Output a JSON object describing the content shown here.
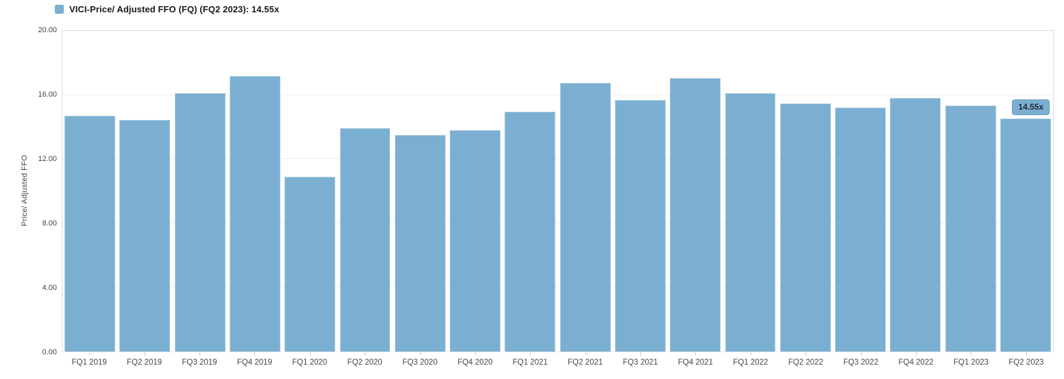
{
  "legend": {
    "label": "VICI-Price/ Adjusted FFO (FQ) (FQ2 2023): 14.55x",
    "swatch_color": "#7bafd1"
  },
  "chart_data": {
    "type": "bar",
    "title": "",
    "series_name": "VICI-Price/ Adjusted FFO (FQ)",
    "xlabel": "",
    "ylabel": "Price/ Adjusted FFO",
    "ylim": [
      0,
      20
    ],
    "grid": "horizontal",
    "legend_position": "top-left",
    "bar_color": "#7bafd1",
    "categories": [
      "FQ1 2019",
      "FQ2 2019",
      "FQ3 2019",
      "FQ4 2019",
      "FQ1 2020",
      "FQ2 2020",
      "FQ3 2020",
      "FQ4 2020",
      "FQ1 2021",
      "FQ2 2021",
      "FQ3 2021",
      "FQ4 2021",
      "FQ1 2022",
      "FQ2 2022",
      "FQ3 2022",
      "FQ4 2022",
      "FQ1 2023",
      "FQ2 2023"
    ],
    "values": [
      14.7,
      14.45,
      16.1,
      17.2,
      10.9,
      13.95,
      13.5,
      13.8,
      14.95,
      16.75,
      15.7,
      17.05,
      16.1,
      15.45,
      15.2,
      15.8,
      15.35,
      14.55
    ],
    "y_ticks": [
      {
        "value": 0,
        "label": "0.00"
      },
      {
        "value": 4,
        "label": "4.00"
      },
      {
        "value": 8,
        "label": "8.00"
      },
      {
        "value": 12,
        "label": "12.00"
      },
      {
        "value": 16,
        "label": "16.00"
      },
      {
        "value": 20,
        "label": "20.00"
      }
    ],
    "annotation": {
      "category": "FQ2 2023",
      "index": 17,
      "text": "14.55x"
    }
  },
  "colors": {
    "bar": "#7bafd1",
    "grid": "#ededed",
    "plot_border": "#dcdce4",
    "axis_text": "#424242",
    "legend_text": "#15181e",
    "badge_text": "#1c2733"
  }
}
